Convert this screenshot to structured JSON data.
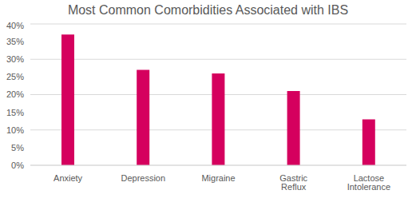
{
  "chart_data": {
    "type": "bar",
    "title": "Most Common Comorbidities Associated with IBS",
    "categories": [
      "Anxiety",
      "Depression",
      "Migraine",
      "Gastric Reflux",
      "Lactose Intolerance"
    ],
    "values": [
      37,
      27,
      26,
      21,
      13
    ],
    "color": "#d5005e",
    "ylim": [
      0,
      40
    ],
    "yticks": [
      {
        "value": 0,
        "label": "0%"
      },
      {
        "value": 5,
        "label": "5%"
      },
      {
        "value": 10,
        "label": "10%"
      },
      {
        "value": 15,
        "label": "15%"
      },
      {
        "value": 20,
        "label": "20%"
      },
      {
        "value": 25,
        "label": "25%"
      },
      {
        "value": 30,
        "label": "30%"
      },
      {
        "value": 35,
        "label": "35%"
      },
      {
        "value": 40,
        "label": "40%"
      }
    ],
    "grid": true
  }
}
